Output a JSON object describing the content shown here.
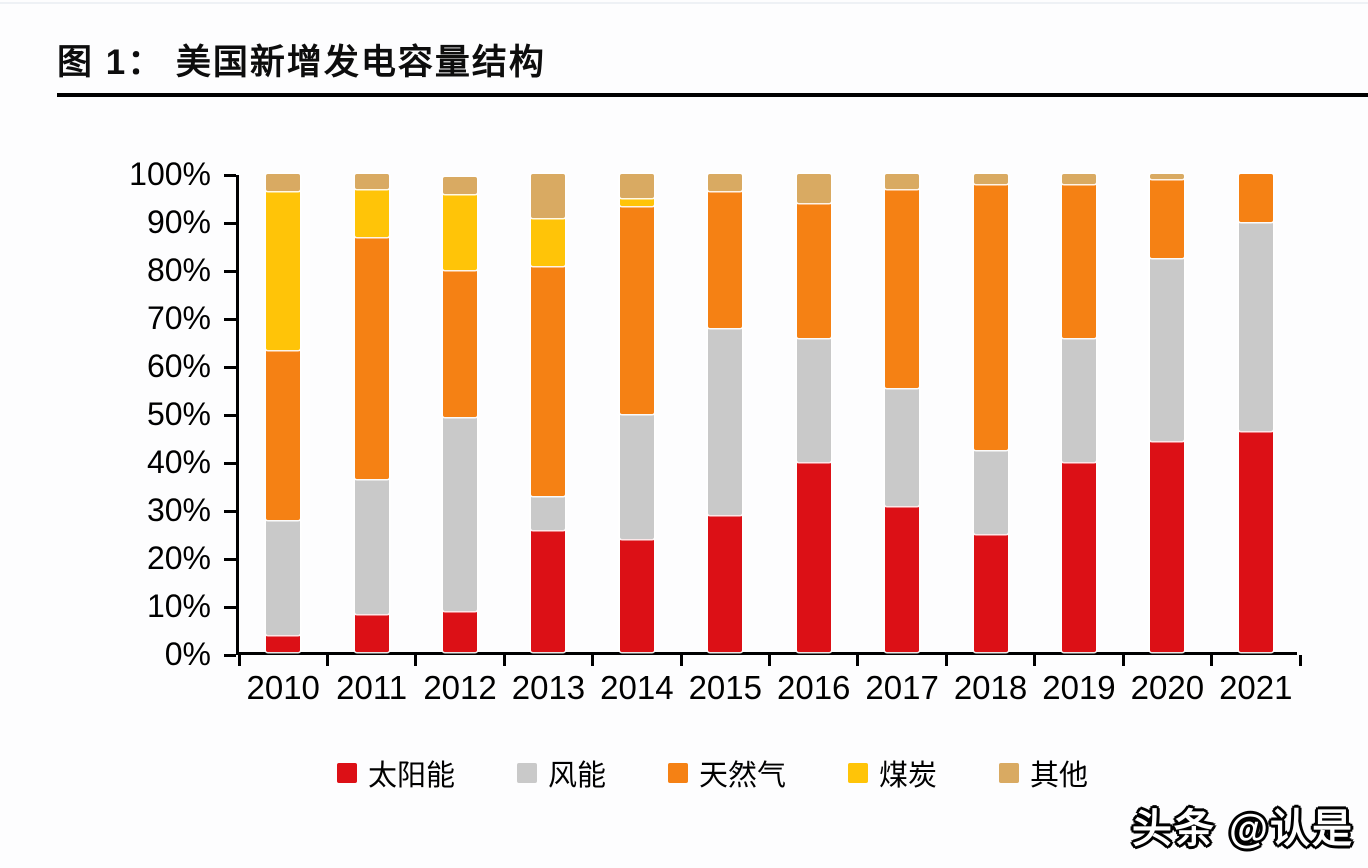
{
  "figure": {
    "title": "图 1： 美国新增发电容量结构"
  },
  "watermark": {
    "text": "头条 @认是"
  },
  "chart_data": {
    "type": "bar",
    "variant": "stacked",
    "title": "美国新增发电容量结构",
    "unit": "percent",
    "grid": false,
    "legend_position": "bottom",
    "categories": [
      "2010",
      "2011",
      "2012",
      "2013",
      "2014",
      "2015",
      "2016",
      "2017",
      "2018",
      "2019",
      "2020",
      "2021"
    ],
    "series": [
      {
        "name": "太阳能",
        "color": "#dc1016",
        "values": [
          3.5,
          8,
          8.5,
          25.5,
          23.5,
          28.5,
          39.5,
          30.5,
          24.5,
          39.5,
          44,
          46
        ]
      },
      {
        "name": "风能",
        "color": "#c9c9c9",
        "values": [
          24,
          28,
          40.5,
          7,
          26,
          39,
          26,
          24.5,
          17.5,
          26,
          38,
          43.5
        ]
      },
      {
        "name": "天然气",
        "color": "#f58114",
        "values": [
          35.5,
          50.5,
          30.5,
          48,
          43.5,
          28.5,
          28,
          41.5,
          55.5,
          32,
          16.5,
          10
        ]
      },
      {
        "name": "煤炭",
        "color": "#ffc408",
        "values": [
          33,
          10,
          16,
          10,
          1.5,
          0,
          0,
          0,
          0,
          0,
          0,
          0
        ]
      },
      {
        "name": "其他",
        "color": "#d9aa62",
        "values": [
          3.5,
          3,
          3.5,
          9,
          5,
          3.5,
          6,
          3,
          2,
          2,
          1,
          0
        ]
      }
    ],
    "y_axis": {
      "min": 0,
      "max": 100,
      "step": 10,
      "labels": [
        "0%",
        "10%",
        "20%",
        "30%",
        "40%",
        "50%",
        "60%",
        "70%",
        "80%",
        "90%",
        "100%"
      ]
    },
    "colors": {
      "axis": "#000000",
      "title": "#0d0d0d",
      "rule": "#000000",
      "background": "#fdfdfe"
    }
  }
}
